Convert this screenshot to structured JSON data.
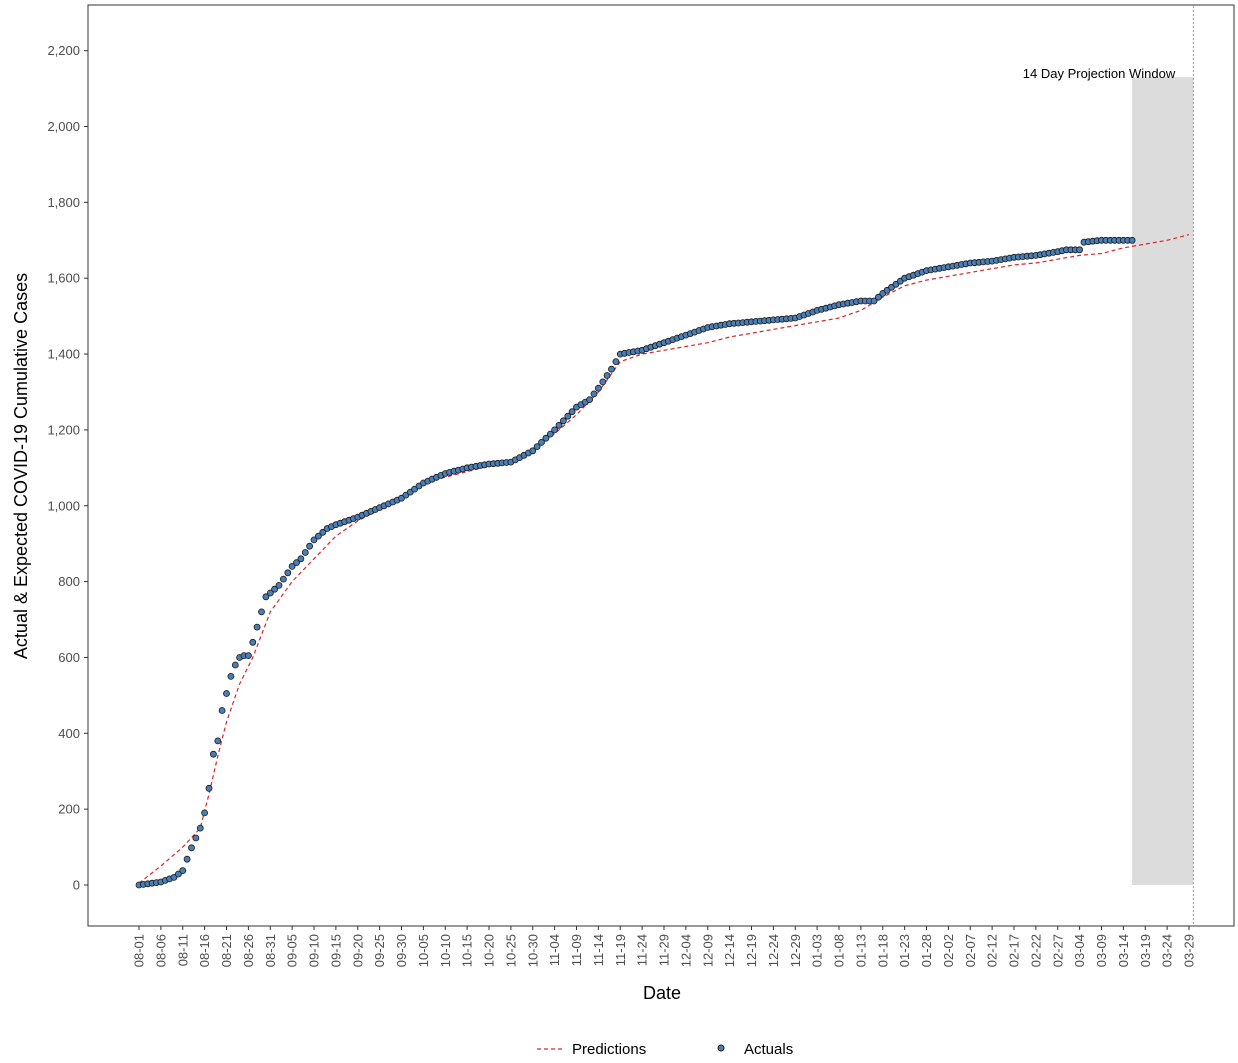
{
  "chart_data": {
    "type": "scatter",
    "title": "",
    "xlabel": "Date",
    "ylabel": "Actual & Expected COVID-19 Cumulative Cases",
    "x_start": "08-01",
    "x_end": "03-30",
    "ylim": [
      -100,
      2320
    ],
    "yticks": [
      0,
      200,
      400,
      600,
      800,
      1000,
      1200,
      1400,
      1600,
      1800,
      2000,
      2200
    ],
    "ytick_labels": [
      "0",
      "200",
      "400",
      "600",
      "800",
      "1,000",
      "1,200",
      "1,400",
      "1,600",
      "1,800",
      "2,000",
      "2,200"
    ],
    "xtick_labels": [
      "08-01",
      "08-06",
      "08-11",
      "08-16",
      "08-21",
      "08-26",
      "08-31",
      "09-05",
      "09-10",
      "09-15",
      "09-20",
      "09-25",
      "09-30",
      "10-05",
      "10-10",
      "10-15",
      "10-20",
      "10-25",
      "10-30",
      "11-04",
      "11-09",
      "11-14",
      "11-19",
      "11-24",
      "11-29",
      "12-04",
      "12-09",
      "12-14",
      "12-19",
      "12-24",
      "12-29",
      "01-03",
      "01-08",
      "01-13",
      "01-18",
      "01-23",
      "01-28",
      "02-02",
      "02-07",
      "02-12",
      "02-17",
      "02-22",
      "02-27",
      "03-04",
      "03-09",
      "03-14",
      "03-19",
      "03-24",
      "03-29"
    ],
    "grid": false,
    "legend_position": "bottom",
    "series": [
      {
        "name": "Actuals",
        "kind": "points",
        "color": "#4a7eb5",
        "edge_color": "#1a1a1a",
        "x": [
          "08-01",
          "08-06",
          "08-09",
          "08-11",
          "08-13",
          "08-15",
          "08-16",
          "08-17",
          "08-18",
          "08-19",
          "08-20",
          "08-21",
          "08-22",
          "08-23",
          "08-24",
          "08-25",
          "08-26",
          "08-27",
          "08-29",
          "08-30",
          "08-31",
          "09-02",
          "09-05",
          "09-07",
          "09-10",
          "09-13",
          "09-15",
          "09-20",
          "09-25",
          "09-30",
          "10-05",
          "10-10",
          "10-15",
          "10-20",
          "10-25",
          "10-30",
          "11-04",
          "11-09",
          "11-12",
          "11-14",
          "11-17",
          "11-19",
          "11-24",
          "11-29",
          "12-04",
          "12-09",
          "12-14",
          "12-19",
          "12-24",
          "12-29",
          "01-03",
          "01-08",
          "01-13",
          "01-16",
          "01-18",
          "01-23",
          "01-28",
          "02-02",
          "02-07",
          "02-12",
          "02-17",
          "02-22",
          "02-27",
          "03-01",
          "03-04",
          "03-05",
          "03-09",
          "03-14",
          "03-16"
        ],
        "y": [
          0,
          8,
          20,
          38,
          98,
          150,
          190,
          255,
          345,
          380,
          460,
          505,
          550,
          580,
          600,
          605,
          605,
          640,
          720,
          760,
          770,
          790,
          840,
          860,
          910,
          940,
          950,
          970,
          995,
          1020,
          1060,
          1085,
          1100,
          1110,
          1115,
          1145,
          1200,
          1260,
          1280,
          1310,
          1360,
          1400,
          1410,
          1430,
          1450,
          1470,
          1480,
          1485,
          1490,
          1495,
          1515,
          1530,
          1540,
          1540,
          1560,
          1600,
          1620,
          1630,
          1640,
          1645,
          1655,
          1660,
          1670,
          1675,
          1675,
          1695,
          1700,
          1700,
          1700
        ]
      },
      {
        "name": "Predictions",
        "kind": "dashed-line",
        "color": "#d7262b",
        "x": [
          "08-01",
          "08-06",
          "08-11",
          "08-15",
          "08-17",
          "08-19",
          "08-21",
          "08-24",
          "08-27",
          "08-31",
          "09-05",
          "09-10",
          "09-15",
          "09-20",
          "09-25",
          "09-30",
          "10-05",
          "10-10",
          "10-15",
          "10-20",
          "10-25",
          "10-30",
          "11-04",
          "11-09",
          "11-14",
          "11-19",
          "11-24",
          "11-29",
          "12-04",
          "12-09",
          "12-14",
          "12-19",
          "12-24",
          "12-29",
          "01-03",
          "01-08",
          "01-13",
          "01-18",
          "01-23",
          "01-28",
          "02-02",
          "02-07",
          "02-12",
          "02-17",
          "02-22",
          "02-27",
          "03-04",
          "03-09",
          "03-14",
          "03-19",
          "03-24",
          "03-29"
        ],
        "y": [
          5,
          50,
          100,
          150,
          240,
          340,
          430,
          530,
          600,
          720,
          800,
          860,
          920,
          960,
          990,
          1020,
          1060,
          1075,
          1090,
          1105,
          1120,
          1150,
          1190,
          1240,
          1300,
          1380,
          1400,
          1410,
          1420,
          1430,
          1445,
          1455,
          1465,
          1475,
          1485,
          1495,
          1515,
          1550,
          1580,
          1595,
          1605,
          1615,
          1625,
          1635,
          1640,
          1650,
          1660,
          1665,
          1680,
          1690,
          1700,
          1715
        ]
      }
    ],
    "projection_window": {
      "label": "14 Day Projection Window",
      "start": "03-16",
      "end": "03-30",
      "y_top": 2130,
      "fill": "#dcdcdc"
    },
    "vline": {
      "at": "03-30",
      "color": "#6fa8c8"
    },
    "legend": [
      {
        "label": "Predictions"
      },
      {
        "label": "Actuals"
      }
    ]
  }
}
